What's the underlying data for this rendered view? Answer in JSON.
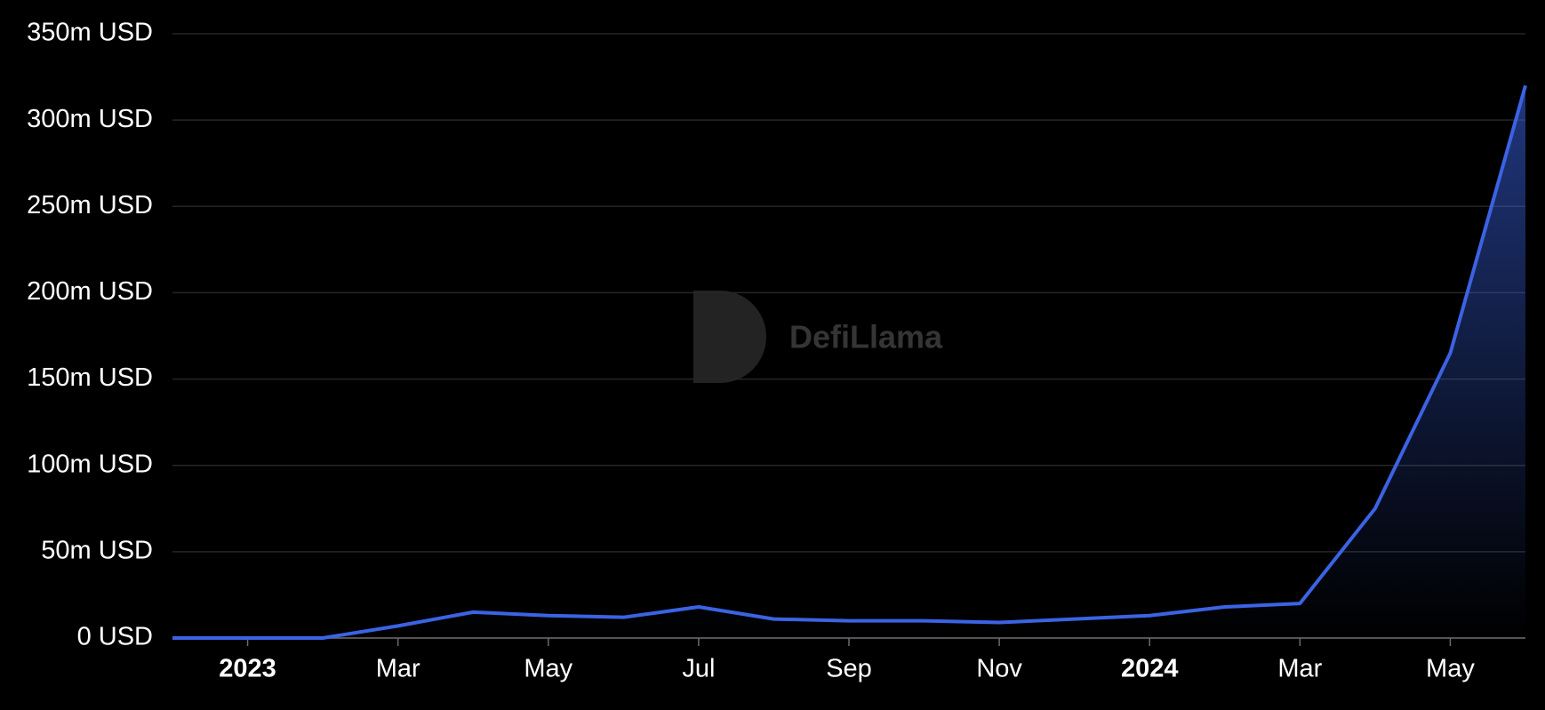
{
  "chart_data": {
    "type": "area",
    "watermark": "DefiLlama",
    "color": "#3b63e3",
    "grid": true,
    "x": [
      "2022-12",
      "2023-01",
      "2023-02",
      "2023-03",
      "2023-04",
      "2023-05",
      "2023-06",
      "2023-07",
      "2023-08",
      "2023-09",
      "2023-10",
      "2023-11",
      "2023-12",
      "2024-01",
      "2024-02",
      "2024-03",
      "2024-04",
      "2024-05",
      "2024-06"
    ],
    "values": [
      0,
      0,
      0,
      7,
      15,
      13,
      12,
      18,
      11,
      10,
      10,
      9,
      11,
      13,
      18,
      20,
      75,
      165,
      320
    ],
    "xlim": [
      "2022-12",
      "2024-06"
    ],
    "xticks": [
      {
        "value": "2023-01",
        "label": "2023"
      },
      {
        "value": "2023-03",
        "label": "Mar"
      },
      {
        "value": "2023-05",
        "label": "May"
      },
      {
        "value": "2023-07",
        "label": "Jul"
      },
      {
        "value": "2023-09",
        "label": "Sep"
      },
      {
        "value": "2023-11",
        "label": "Nov"
      },
      {
        "value": "2024-01",
        "label": "2024"
      },
      {
        "value": "2024-03",
        "label": "Mar"
      },
      {
        "value": "2024-05",
        "label": "May"
      }
    ],
    "ylim": [
      0,
      350
    ],
    "yticks": [
      {
        "value": 0,
        "label": "0 USD"
      },
      {
        "value": 50,
        "label": "50m USD"
      },
      {
        "value": 100,
        "label": "100m USD"
      },
      {
        "value": 150,
        "label": "150m USD"
      },
      {
        "value": 200,
        "label": "200m USD"
      },
      {
        "value": 250,
        "label": "250m USD"
      },
      {
        "value": 300,
        "label": "300m USD"
      },
      {
        "value": 350,
        "label": "350m USD"
      }
    ]
  }
}
